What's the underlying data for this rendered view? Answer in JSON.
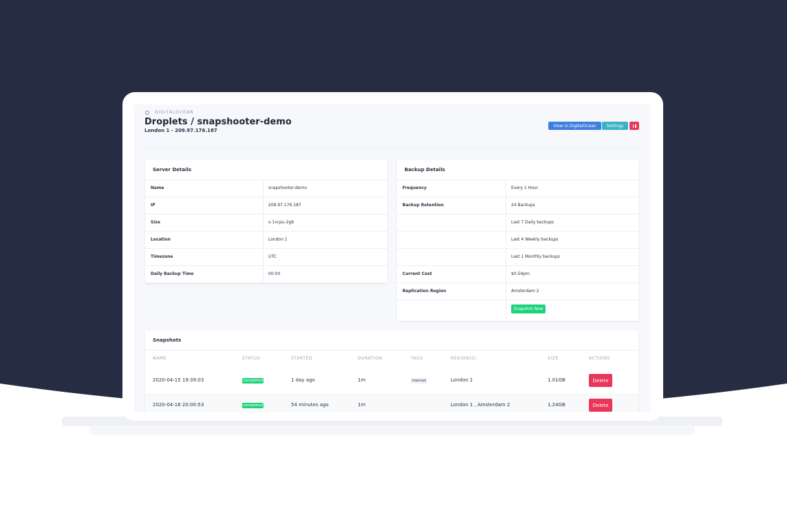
{
  "header": {
    "breadcrumb": "DIGITALOCEAN",
    "title": "Droplets / snapshooter-demo",
    "subtitle": "London 1 - 209.97.176.187",
    "buttons": [
      "View in DigitalOcean",
      "Settings"
    ]
  },
  "server_details": {
    "title": "Server Details",
    "rows": [
      {
        "label": "Name",
        "value": "snapshooter-demo"
      },
      {
        "label": "IP",
        "value": "209.97.176.187"
      },
      {
        "label": "Size",
        "value": "s-1vcpu-2gb"
      },
      {
        "label": "Location",
        "value": "London 1"
      },
      {
        "label": "Timezone",
        "value": "UTC"
      },
      {
        "label": "Daily Backup Time",
        "value": "00:00"
      }
    ]
  },
  "backup_details": {
    "title": "Backup Details",
    "rows": [
      {
        "label": "Frequency",
        "value": "Every 1 Hour"
      },
      {
        "label": "Backup Retention",
        "value": "24 Backups"
      },
      {
        "value": "Last 7 Daily backups"
      },
      {
        "value": "Last 4 Weekly backups"
      },
      {
        "value": "Last 1 Monthly backups"
      },
      {
        "label": "Current Cost",
        "value": "$0.54pm"
      },
      {
        "label": "Replication Region",
        "value": "Amsterdam 2"
      }
    ],
    "snapshot_button": "Snapshot Now"
  },
  "snapshots": {
    "title": "Snapshots",
    "columns": [
      "NAME",
      "STATUS",
      "STARTED",
      "DURATION",
      "TAGS",
      "REGION(S)",
      "SIZE",
      "ACTIONS"
    ],
    "rows": [
      {
        "name": "2020-04-15 19:39:03",
        "status": "completed",
        "started": "1 day ago",
        "duration": "1m",
        "tags": "manual",
        "regions": "London 1",
        "size": "1.01GB",
        "action": "Delete"
      },
      {
        "name": "2020-04-16 20:00:53",
        "status": "completed",
        "started": "54 minutes ago",
        "duration": "1m",
        "regions": "London 1 , Amsterdam 2",
        "size": "1.24GB",
        "action": "Delete"
      }
    ]
  }
}
